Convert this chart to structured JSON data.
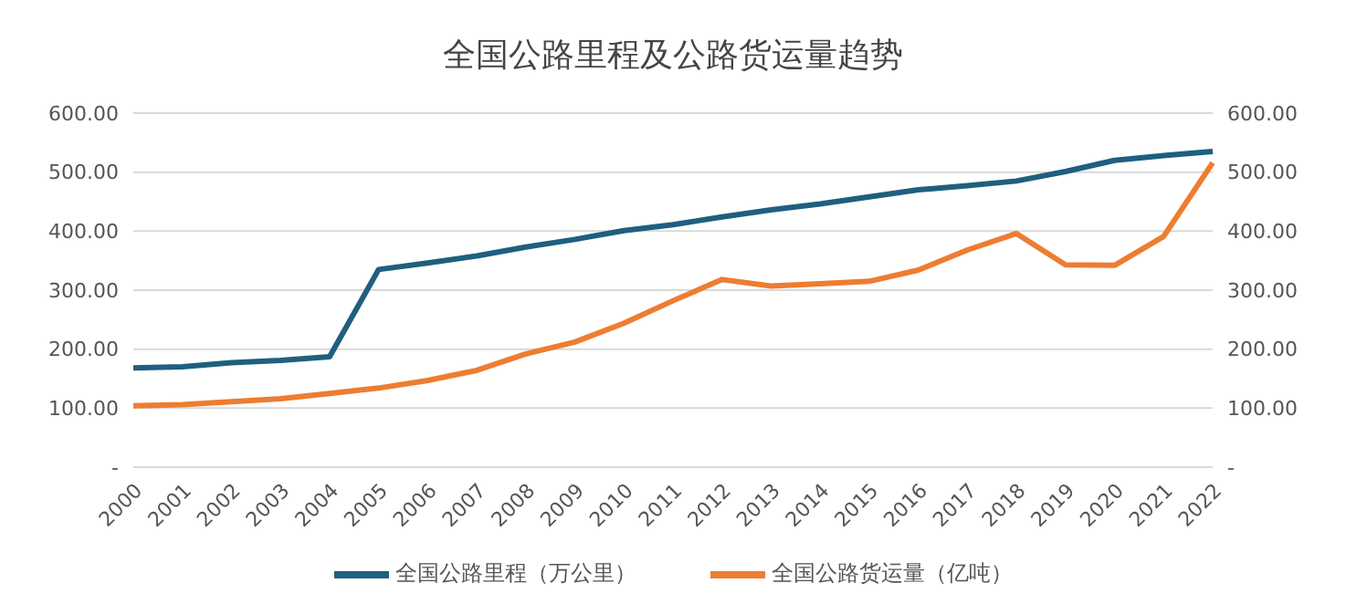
{
  "chart_data": {
    "type": "line",
    "title": "全国公路里程及公路货运量趋势",
    "categories": [
      "2000",
      "2001",
      "2002",
      "2003",
      "2004",
      "2005",
      "2006",
      "2007",
      "2008",
      "2009",
      "2010",
      "2011",
      "2012",
      "2013",
      "2014",
      "2015",
      "2016",
      "2017",
      "2018",
      "2019",
      "2020",
      "2021",
      "2022"
    ],
    "series": [
      {
        "name": "全国公路里程（万公里）",
        "color": "#1f5f7f",
        "values": [
          168,
          170,
          177,
          181,
          187,
          335,
          346,
          358,
          373,
          386,
          401,
          411,
          424,
          436,
          446,
          458,
          470,
          477,
          485,
          501,
          520,
          528,
          535
        ]
      },
      {
        "name": "全国公路货运量（亿吨）",
        "color": "#ed7d31",
        "axis": "y2",
        "values": [
          104,
          106,
          111,
          116,
          125,
          134,
          147,
          164,
          192,
          212,
          244,
          282,
          318,
          307,
          311,
          315,
          334,
          368,
          396,
          343,
          342,
          391,
          516
        ]
      }
    ],
    "ylim": [
      0,
      600
    ],
    "yticks": [
      {
        "value": 0,
        "label": "-"
      },
      {
        "value": 100,
        "label": "100.00"
      },
      {
        "value": 200,
        "label": "200.00"
      },
      {
        "value": 300,
        "label": "300.00"
      },
      {
        "value": 400,
        "label": "400.00"
      },
      {
        "value": 500,
        "label": "500.00"
      },
      {
        "value": 600,
        "label": "600.00"
      }
    ],
    "y2lim": [
      0,
      600
    ],
    "y2ticks": [
      {
        "value": 0,
        "label": "-"
      },
      {
        "value": 100,
        "label": "100.00"
      },
      {
        "value": 200,
        "label": "200.00"
      },
      {
        "value": 300,
        "label": "300.00"
      },
      {
        "value": 400,
        "label": "400.00"
      },
      {
        "value": 500,
        "label": "500.00"
      },
      {
        "value": 600,
        "label": "600.00"
      }
    ],
    "grid": "y",
    "legend": "bottom",
    "marker": "none",
    "line_style": "solid"
  }
}
